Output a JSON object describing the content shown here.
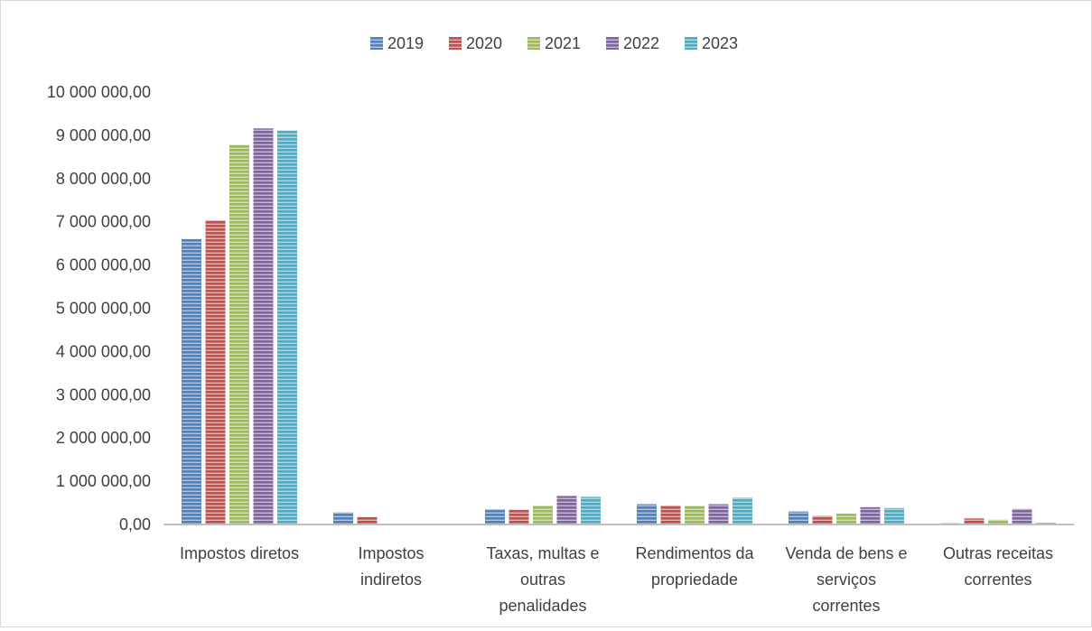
{
  "chart_data": {
    "type": "bar",
    "title": "",
    "xlabel": "",
    "ylabel": "",
    "categories": [
      [
        "Impostos diretos"
      ],
      [
        "Impostos",
        "indiretos"
      ],
      [
        "Taxas, multas e",
        "outras",
        "penalidades"
      ],
      [
        "Rendimentos da",
        "propriedade"
      ],
      [
        "Venda de bens e",
        "serviços",
        "correntes"
      ],
      [
        "Outras receitas",
        "correntes"
      ]
    ],
    "series": [
      {
        "name": "2019",
        "color": "#4f81bd",
        "values": [
          6600000,
          280000,
          350000,
          470000,
          300000,
          30000
        ]
      },
      {
        "name": "2020",
        "color": "#c0504d",
        "values": [
          7030000,
          170000,
          340000,
          440000,
          200000,
          140000
        ]
      },
      {
        "name": "2021",
        "color": "#9bbb59",
        "values": [
          8780000,
          0,
          440000,
          430000,
          250000,
          110000
        ]
      },
      {
        "name": "2022",
        "color": "#8064a2",
        "values": [
          9160000,
          0,
          660000,
          470000,
          400000,
          360000
        ]
      },
      {
        "name": "2023",
        "color": "#4bacc6",
        "values": [
          9110000,
          0,
          640000,
          620000,
          380000,
          40000
        ]
      }
    ],
    "ylim": [
      0,
      10000000
    ],
    "yticks": [
      "0,00",
      "1 000 000,00",
      "2 000 000,00",
      "3 000 000,00",
      "4 000 000,00",
      "5 000 000,00",
      "6 000 000,00",
      "7 000 000,00",
      "8 000 000,00",
      "9 000 000,00",
      "10 000 000,00"
    ],
    "grid": false,
    "legend_position": "top-center"
  }
}
